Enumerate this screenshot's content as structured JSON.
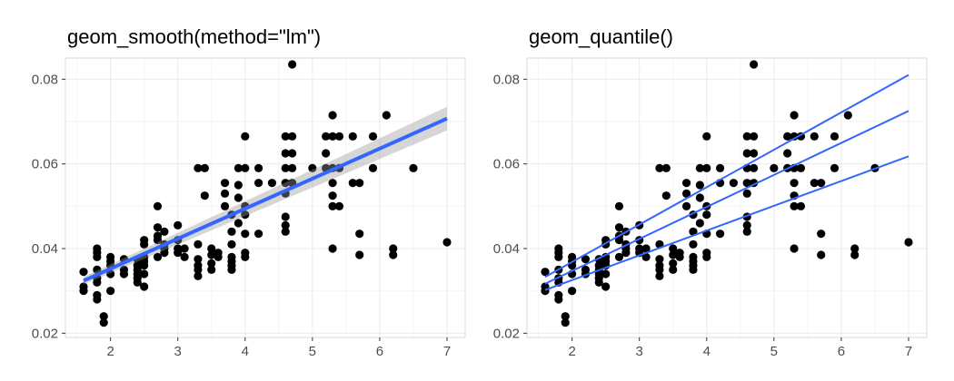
{
  "colors": {
    "panel_border": "#d9d9d9",
    "grid_major": "#ebebeb",
    "grid_minor": "#f5f5f5",
    "tick_text": "#4d4d4d",
    "points": "#000000",
    "line": "#3366ff",
    "ribbon": "#999999"
  },
  "chart_data": [
    {
      "type": "scatter",
      "title": "geom_smooth(method=\"lm\")",
      "xlabel": "",
      "ylabel": "",
      "xlim": [
        1.6,
        7.0
      ],
      "ylim": [
        0.02,
        0.084
      ],
      "x_ticks": [
        2,
        3,
        4,
        5,
        6,
        7
      ],
      "x_tick_labels": [
        "2",
        "3",
        "4",
        "5",
        "6",
        "7"
      ],
      "y_ticks": [
        0.02,
        0.04,
        0.06,
        0.08
      ],
      "y_tick_labels": [
        "0.02",
        "0.04",
        "0.06",
        "0.08"
      ],
      "grid": true,
      "points": [
        [
          1.6,
          0.0345
        ],
        [
          1.6,
          0.031
        ],
        [
          1.6,
          0.03
        ],
        [
          1.8,
          0.035
        ],
        [
          1.8,
          0.04
        ],
        [
          1.8,
          0.039
        ],
        [
          1.8,
          0.038
        ],
        [
          1.8,
          0.033
        ],
        [
          1.8,
          0.032
        ],
        [
          1.8,
          0.029
        ],
        [
          1.8,
          0.028
        ],
        [
          1.9,
          0.024
        ],
        [
          1.9,
          0.0225
        ],
        [
          2.0,
          0.038
        ],
        [
          2.0,
          0.037
        ],
        [
          2.0,
          0.036
        ],
        [
          2.0,
          0.034
        ],
        [
          2.0,
          0.03
        ],
        [
          2.2,
          0.0375
        ],
        [
          2.2,
          0.035
        ],
        [
          2.2,
          0.034
        ],
        [
          2.4,
          0.036
        ],
        [
          2.4,
          0.0375
        ],
        [
          2.4,
          0.035
        ],
        [
          2.4,
          0.034
        ],
        [
          2.4,
          0.033
        ],
        [
          2.4,
          0.032
        ],
        [
          2.5,
          0.042
        ],
        [
          2.5,
          0.041
        ],
        [
          2.5,
          0.038
        ],
        [
          2.5,
          0.037
        ],
        [
          2.5,
          0.036
        ],
        [
          2.5,
          0.034
        ],
        [
          2.5,
          0.031
        ],
        [
          2.7,
          0.05
        ],
        [
          2.7,
          0.045
        ],
        [
          2.7,
          0.043
        ],
        [
          2.7,
          0.042
        ],
        [
          2.7,
          0.038
        ],
        [
          2.8,
          0.044
        ],
        [
          2.8,
          0.041
        ],
        [
          2.8,
          0.04
        ],
        [
          2.8,
          0.039
        ],
        [
          3.0,
          0.0455
        ],
        [
          3.0,
          0.042
        ],
        [
          3.0,
          0.04
        ],
        [
          3.0,
          0.039
        ],
        [
          3.1,
          0.04
        ],
        [
          3.1,
          0.038
        ],
        [
          3.3,
          0.041
        ],
        [
          3.3,
          0.0375
        ],
        [
          3.3,
          0.036
        ],
        [
          3.3,
          0.035
        ],
        [
          3.3,
          0.0335
        ],
        [
          3.3,
          0.059
        ],
        [
          3.4,
          0.059
        ],
        [
          3.4,
          0.0525
        ],
        [
          3.5,
          0.04
        ],
        [
          3.5,
          0.0385
        ],
        [
          3.5,
          0.0365
        ],
        [
          3.5,
          0.035
        ],
        [
          3.6,
          0.038
        ],
        [
          3.6,
          0.039
        ],
        [
          3.7,
          0.0555
        ],
        [
          3.7,
          0.053
        ],
        [
          3.7,
          0.05
        ],
        [
          3.8,
          0.048
        ],
        [
          3.8,
          0.044
        ],
        [
          3.8,
          0.041
        ],
        [
          3.8,
          0.038
        ],
        [
          3.8,
          0.037
        ],
        [
          3.8,
          0.036
        ],
        [
          3.8,
          0.035
        ],
        [
          3.9,
          0.059
        ],
        [
          3.9,
          0.055
        ],
        [
          3.9,
          0.052
        ],
        [
          3.9,
          0.046
        ],
        [
          4.0,
          0.059
        ],
        [
          4.0,
          0.0665
        ],
        [
          4.0,
          0.05
        ],
        [
          4.0,
          0.048
        ],
        [
          4.0,
          0.0435
        ],
        [
          4.0,
          0.039
        ],
        [
          4.0,
          0.038
        ],
        [
          4.2,
          0.059
        ],
        [
          4.2,
          0.0555
        ],
        [
          4.2,
          0.0435
        ],
        [
          4.4,
          0.0555
        ],
        [
          4.6,
          0.0665
        ],
        [
          4.6,
          0.0625
        ],
        [
          4.6,
          0.059
        ],
        [
          4.6,
          0.0555
        ],
        [
          4.6,
          0.053
        ],
        [
          4.6,
          0.0475
        ],
        [
          4.6,
          0.0455
        ],
        [
          4.6,
          0.044
        ],
        [
          4.7,
          0.0835
        ],
        [
          4.7,
          0.0665
        ],
        [
          4.7,
          0.0625
        ],
        [
          4.7,
          0.059
        ],
        [
          4.7,
          0.0555
        ],
        [
          5.0,
          0.059
        ],
        [
          5.2,
          0.059
        ],
        [
          5.2,
          0.0665
        ],
        [
          5.2,
          0.0625
        ],
        [
          5.3,
          0.0715
        ],
        [
          5.3,
          0.0665
        ],
        [
          5.3,
          0.059
        ],
        [
          5.3,
          0.0555
        ],
        [
          5.3,
          0.0525
        ],
        [
          5.3,
          0.05
        ],
        [
          5.3,
          0.04
        ],
        [
          5.4,
          0.0665
        ],
        [
          5.4,
          0.059
        ],
        [
          5.4,
          0.05
        ],
        [
          5.6,
          0.0665
        ],
        [
          5.6,
          0.0555
        ],
        [
          5.7,
          0.0555
        ],
        [
          5.7,
          0.0435
        ],
        [
          5.7,
          0.0385
        ],
        [
          5.9,
          0.0665
        ],
        [
          5.9,
          0.059
        ],
        [
          6.1,
          0.0715
        ],
        [
          6.2,
          0.04
        ],
        [
          6.2,
          0.0385
        ],
        [
          6.5,
          0.059
        ],
        [
          7.0,
          0.0415
        ]
      ],
      "lm_fit": {
        "x": [
          1.6,
          7.0
        ],
        "y": [
          0.0324,
          0.0707
        ],
        "se_lower": [
          0.0315,
          0.0679
        ],
        "se_upper": [
          0.0333,
          0.0735
        ]
      }
    },
    {
      "type": "scatter",
      "title": "geom_quantile()",
      "xlabel": "",
      "ylabel": "",
      "xlim": [
        1.6,
        7.0
      ],
      "ylim": [
        0.02,
        0.084
      ],
      "x_ticks": [
        2,
        3,
        4,
        5,
        6,
        7
      ],
      "x_tick_labels": [
        "2",
        "3",
        "4",
        "5",
        "6",
        "7"
      ],
      "y_ticks": [
        0.02,
        0.04,
        0.06,
        0.08
      ],
      "y_tick_labels": [
        "0.02",
        "0.04",
        "0.06",
        "0.08"
      ],
      "grid": true,
      "points": "same as panel 1",
      "quantile_lines": [
        {
          "x": [
            1.6,
            7.0
          ],
          "y": [
            0.0302,
            0.0618
          ]
        },
        {
          "x": [
            1.6,
            7.0
          ],
          "y": [
            0.0317,
            0.0725
          ]
        },
        {
          "x": [
            1.6,
            7.0
          ],
          "y": [
            0.0333,
            0.081
          ]
        }
      ]
    }
  ]
}
